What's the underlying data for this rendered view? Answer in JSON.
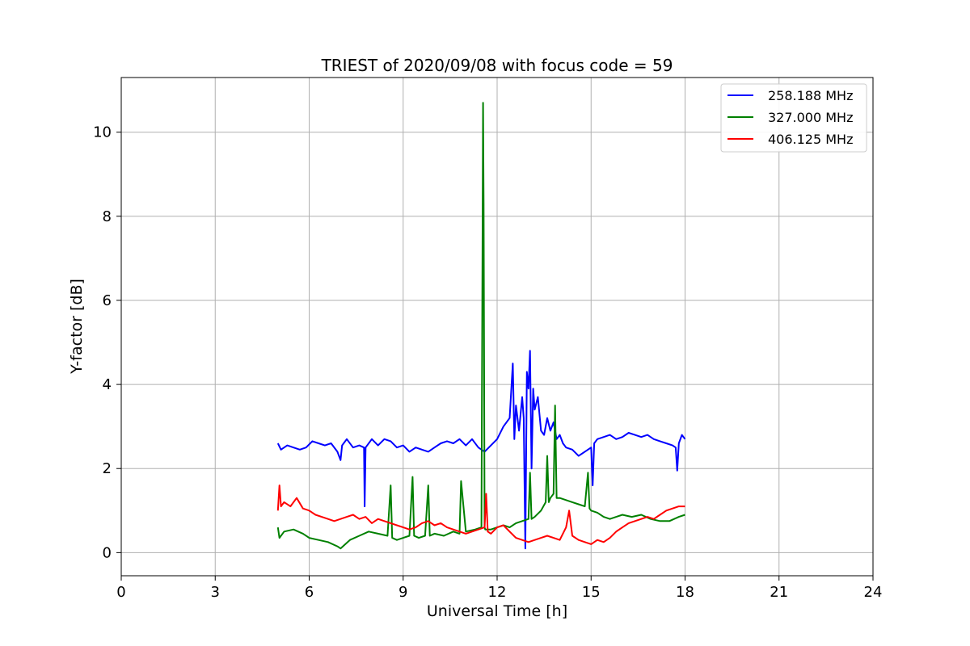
{
  "chart_data": {
    "type": "line",
    "title": "TRIEST of 2020/09/08 with focus code = 59",
    "xlabel": "Universal Time [h]",
    "ylabel": "Y-factor [dB]",
    "xlim": [
      0,
      24
    ],
    "ylim": [
      -0.55,
      11.3
    ],
    "xticks": [
      0,
      3,
      6,
      9,
      12,
      15,
      18,
      21,
      24
    ],
    "yticks": [
      0,
      2,
      4,
      6,
      8,
      10
    ],
    "grid": true,
    "legend_position": "top-right",
    "series": [
      {
        "name": "258.188 MHz",
        "color": "#0000ff",
        "x": [
          5.0,
          5.1,
          5.3,
          5.5,
          5.7,
          5.9,
          6.1,
          6.3,
          6.5,
          6.7,
          6.9,
          7.0,
          7.05,
          7.2,
          7.4,
          7.6,
          7.75,
          7.77,
          7.8,
          8.0,
          8.2,
          8.4,
          8.6,
          8.8,
          9.0,
          9.2,
          9.4,
          9.6,
          9.8,
          10.0,
          10.2,
          10.4,
          10.6,
          10.8,
          11.0,
          11.2,
          11.4,
          11.6,
          11.8,
          12.0,
          12.2,
          12.4,
          12.5,
          12.55,
          12.6,
          12.7,
          12.8,
          12.85,
          12.9,
          12.95,
          13.0,
          13.05,
          13.1,
          13.15,
          13.2,
          13.3,
          13.4,
          13.5,
          13.6,
          13.7,
          13.8,
          13.9,
          14.0,
          14.1,
          14.2,
          14.4,
          14.6,
          14.8,
          15.0,
          15.05,
          15.1,
          15.2,
          15.4,
          15.6,
          15.8,
          16.0,
          16.2,
          16.4,
          16.6,
          16.8,
          17.0,
          17.2,
          17.4,
          17.6,
          17.7,
          17.75,
          17.8,
          17.9,
          18.0
        ],
        "y": [
          2.6,
          2.45,
          2.55,
          2.5,
          2.45,
          2.5,
          2.65,
          2.6,
          2.55,
          2.6,
          2.4,
          2.2,
          2.55,
          2.7,
          2.5,
          2.55,
          2.5,
          1.1,
          2.5,
          2.7,
          2.55,
          2.7,
          2.65,
          2.5,
          2.55,
          2.4,
          2.5,
          2.45,
          2.4,
          2.5,
          2.6,
          2.65,
          2.6,
          2.7,
          2.55,
          2.7,
          2.5,
          2.4,
          2.55,
          2.7,
          3.0,
          3.2,
          4.5,
          2.7,
          3.5,
          2.9,
          3.7,
          3.2,
          0.1,
          4.3,
          3.9,
          4.8,
          2.0,
          3.9,
          3.4,
          3.7,
          2.9,
          2.8,
          3.2,
          2.9,
          3.1,
          2.7,
          2.8,
          2.6,
          2.5,
          2.45,
          2.3,
          2.4,
          2.5,
          1.6,
          2.6,
          2.7,
          2.75,
          2.8,
          2.7,
          2.75,
          2.85,
          2.8,
          2.75,
          2.8,
          2.7,
          2.65,
          2.6,
          2.55,
          2.5,
          1.95,
          2.6,
          2.8,
          2.7
        ]
      },
      {
        "name": "327.000 MHz",
        "color": "#008000",
        "x": [
          5.0,
          5.05,
          5.2,
          5.5,
          5.8,
          6.0,
          6.3,
          6.6,
          6.9,
          7.0,
          7.3,
          7.6,
          7.9,
          8.2,
          8.5,
          8.6,
          8.65,
          8.8,
          9.0,
          9.2,
          9.3,
          9.35,
          9.5,
          9.7,
          9.8,
          9.85,
          10.0,
          10.3,
          10.6,
          10.8,
          10.85,
          11.0,
          11.3,
          11.5,
          11.55,
          11.57,
          11.6,
          11.62,
          11.8,
          12.0,
          12.2,
          12.4,
          12.6,
          12.8,
          13.0,
          13.05,
          13.1,
          13.2,
          13.4,
          13.55,
          13.6,
          13.65,
          13.7,
          13.8,
          13.85,
          13.9,
          14.0,
          14.2,
          14.4,
          14.6,
          14.8,
          14.9,
          14.95,
          15.0,
          15.2,
          15.4,
          15.6,
          15.8,
          16.0,
          16.3,
          16.6,
          16.9,
          17.2,
          17.5,
          17.8,
          18.0
        ],
        "y": [
          0.6,
          0.35,
          0.5,
          0.55,
          0.45,
          0.35,
          0.3,
          0.25,
          0.15,
          0.1,
          0.3,
          0.4,
          0.5,
          0.45,
          0.4,
          1.6,
          0.35,
          0.3,
          0.35,
          0.4,
          1.8,
          0.4,
          0.35,
          0.4,
          1.6,
          0.4,
          0.45,
          0.4,
          0.5,
          0.45,
          1.7,
          0.5,
          0.55,
          0.6,
          10.7,
          8.3,
          0.6,
          0.55,
          0.55,
          0.6,
          0.65,
          0.6,
          0.7,
          0.75,
          0.8,
          1.9,
          0.8,
          0.85,
          1.0,
          1.2,
          2.3,
          1.2,
          1.3,
          1.4,
          3.5,
          1.3,
          1.3,
          1.25,
          1.2,
          1.15,
          1.1,
          1.9,
          1.05,
          1.0,
          0.95,
          0.85,
          0.8,
          0.85,
          0.9,
          0.85,
          0.9,
          0.8,
          0.75,
          0.75,
          0.85,
          0.9
        ]
      },
      {
        "name": "406.125 MHz",
        "color": "#ff0000",
        "x": [
          5.0,
          5.05,
          5.1,
          5.2,
          5.4,
          5.6,
          5.8,
          6.0,
          6.2,
          6.4,
          6.6,
          6.8,
          7.0,
          7.2,
          7.4,
          7.6,
          7.8,
          8.0,
          8.2,
          8.4,
          8.6,
          8.8,
          9.0,
          9.2,
          9.4,
          9.6,
          9.8,
          10.0,
          10.2,
          10.4,
          10.6,
          10.8,
          11.0,
          11.2,
          11.4,
          11.6,
          11.65,
          11.7,
          11.8,
          12.0,
          12.2,
          12.4,
          12.6,
          12.8,
          13.0,
          13.2,
          13.4,
          13.6,
          13.8,
          14.0,
          14.2,
          14.3,
          14.4,
          14.6,
          14.8,
          15.0,
          15.2,
          15.4,
          15.6,
          15.8,
          16.0,
          16.2,
          16.4,
          16.6,
          16.8,
          17.0,
          17.2,
          17.4,
          17.6,
          17.8,
          18.0
        ],
        "y": [
          1.0,
          1.6,
          1.1,
          1.2,
          1.1,
          1.3,
          1.05,
          1.0,
          0.9,
          0.85,
          0.8,
          0.75,
          0.8,
          0.85,
          0.9,
          0.8,
          0.85,
          0.7,
          0.8,
          0.75,
          0.7,
          0.65,
          0.6,
          0.55,
          0.6,
          0.7,
          0.75,
          0.65,
          0.7,
          0.6,
          0.55,
          0.5,
          0.45,
          0.5,
          0.55,
          0.6,
          1.4,
          0.5,
          0.45,
          0.6,
          0.65,
          0.5,
          0.35,
          0.3,
          0.25,
          0.3,
          0.35,
          0.4,
          0.35,
          0.3,
          0.6,
          1.0,
          0.4,
          0.3,
          0.25,
          0.2,
          0.3,
          0.25,
          0.35,
          0.5,
          0.6,
          0.7,
          0.75,
          0.8,
          0.85,
          0.8,
          0.9,
          1.0,
          1.05,
          1.1,
          1.1
        ]
      }
    ]
  }
}
